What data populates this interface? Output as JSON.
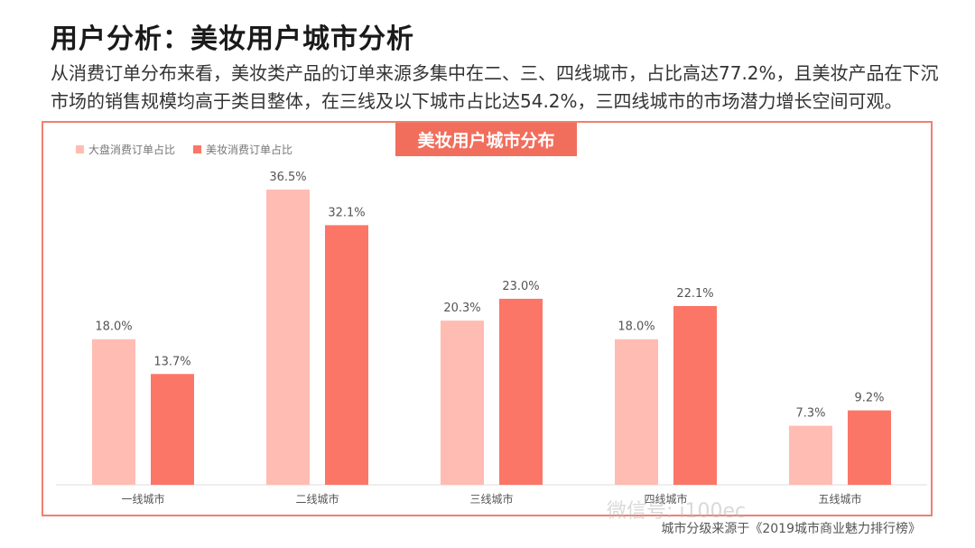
{
  "title": "用户分析：美妆用户城市分析",
  "description": "从消费订单分布来看，美妆类产品的订单来源多集中在二、三、四线城市，占比高达77.2%，且美妆产品在下沉市场的销售规模均高于类目整体，在三线及以下城市占比达54.2%，三四线城市的市场潜力增长空间可观。",
  "source_note": "城市分级来源于《2019城市商业魅力排行榜》",
  "watermark": "微信号: i100ec",
  "colors": {
    "accent": "#f26e5c",
    "series1": "#ffbcb2",
    "series2": "#fb7667"
  },
  "chart_data": {
    "type": "bar",
    "title": "美妆用户城市分布",
    "categories": [
      "一线城市",
      "二线城市",
      "三线城市",
      "四线城市",
      "五线城市"
    ],
    "series": [
      {
        "name": "大盘消费订单占比",
        "values": [
          18.0,
          36.5,
          20.3,
          18.0,
          7.3
        ],
        "labels": [
          "18.0%",
          "36.5%",
          "20.3%",
          "18.0%",
          "7.3%"
        ]
      },
      {
        "name": "美妆消费订单占比",
        "values": [
          13.7,
          32.1,
          23.0,
          22.1,
          9.2
        ],
        "labels": [
          "13.7%",
          "32.1%",
          "23.0%",
          "22.1%",
          "9.2%"
        ]
      }
    ],
    "ylim": [
      0,
      36.5
    ],
    "legend": "top-left",
    "grid": false
  }
}
